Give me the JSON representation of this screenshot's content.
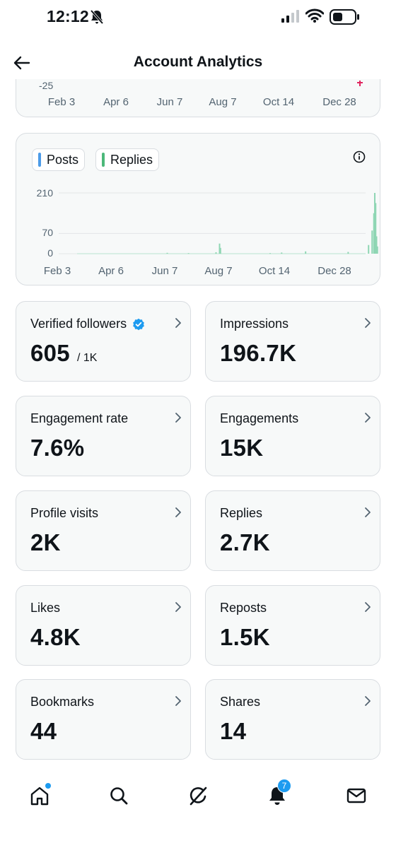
{
  "status_bar": {
    "time": "12:12"
  },
  "header": {
    "title": "Account Analytics"
  },
  "top_chart": {
    "y_label_visible": "-25",
    "x_ticks": [
      "Feb 3",
      "Apr 6",
      "Jun 7",
      "Aug 7",
      "Oct 14",
      "Dec 28"
    ]
  },
  "chart_data": {
    "type": "bar",
    "legend": [
      {
        "name": "Posts",
        "color": "#4c9be8"
      },
      {
        "name": "Replies",
        "color": "#4cb87a"
      }
    ],
    "y_ticks": [
      "210",
      "70",
      "0"
    ],
    "ylim": [
      0,
      210
    ],
    "x_ticks": [
      "Feb 3",
      "Apr 6",
      "Jun 7",
      "Aug 7",
      "Oct 14",
      "Dec 28"
    ],
    "series": [
      {
        "name": "Replies",
        "color": "#8fd6b4",
        "points": [
          {
            "x": "Jun 7",
            "y": 3
          },
          {
            "x": "Jul 1",
            "y": 2
          },
          {
            "x": "Aug 1",
            "y": 5
          },
          {
            "x": "Aug 5",
            "y": 35
          },
          {
            "x": "Aug 6",
            "y": 20
          },
          {
            "x": "Oct 1",
            "y": 2
          },
          {
            "x": "Oct 14",
            "y": 4
          },
          {
            "x": "Nov 10",
            "y": 8
          },
          {
            "x": "Dec 28",
            "y": 6
          },
          {
            "x": "Jan 20",
            "y": 30
          },
          {
            "x": "Jan 24",
            "y": 80
          },
          {
            "x": "Jan 26",
            "y": 140
          },
          {
            "x": "Jan 27",
            "y": 210
          },
          {
            "x": "Jan 28",
            "y": 175
          },
          {
            "x": "Jan 29",
            "y": 60
          },
          {
            "x": "Jan 30",
            "y": 25
          }
        ]
      }
    ]
  },
  "metrics": [
    {
      "label": "Verified followers",
      "value": "605",
      "sub": "/ 1K",
      "verified": true
    },
    {
      "label": "Impressions",
      "value": "196.7K"
    },
    {
      "label": "Engagement rate",
      "value": "7.6%"
    },
    {
      "label": "Engagements",
      "value": "15K"
    },
    {
      "label": "Profile visits",
      "value": "2K"
    },
    {
      "label": "Replies",
      "value": "2.7K"
    },
    {
      "label": "Likes",
      "value": "4.8K"
    },
    {
      "label": "Reposts",
      "value": "1.5K"
    },
    {
      "label": "Bookmarks",
      "value": "44"
    },
    {
      "label": "Shares",
      "value": "14"
    }
  ],
  "bottom_nav": {
    "items": [
      "home-icon",
      "search-icon",
      "grok-icon",
      "notifications-icon",
      "messages-icon"
    ],
    "notification_count": "7"
  },
  "colors": {
    "accent": "#1d9bf0",
    "card_bg": "#f7f9f9",
    "border": "#d9dde1",
    "muted_text": "#536471"
  }
}
